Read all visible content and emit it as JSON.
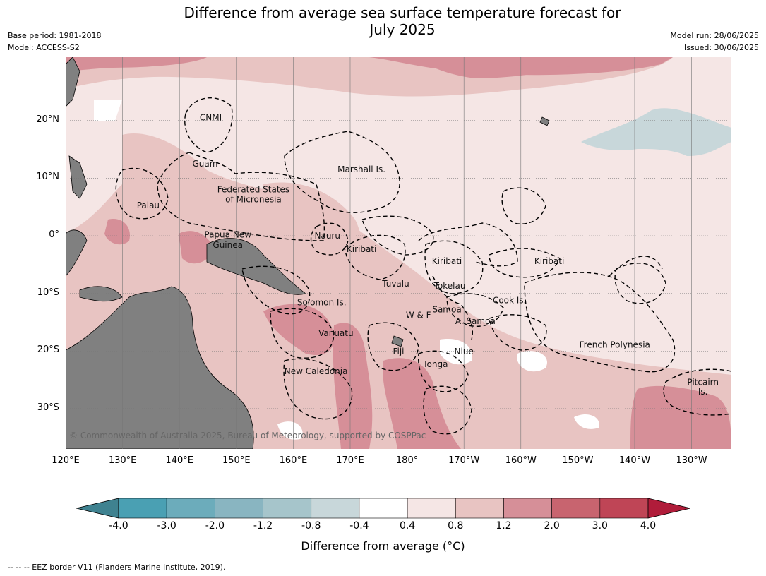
{
  "title_line1": "Difference from average sea surface temperature forecast for",
  "title_line2": "July 2025",
  "meta_left": [
    "Base period: 1981-2018",
    "Model: ACCESS-S2"
  ],
  "meta_right": [
    "Model run: 28/06/2025",
    "Issued: 30/06/2025"
  ],
  "copyright": "© Commonwealth of Australia 2025, Bureau of Meteorology, supported by COSPPac",
  "lat_labels": [
    {
      "label": "20°N",
      "lat": 20
    },
    {
      "label": "10°N",
      "lat": 10
    },
    {
      "label": "0°",
      "lat": 0
    },
    {
      "label": "10°S",
      "lat": -10
    },
    {
      "label": "20°S",
      "lat": -20
    },
    {
      "label": "30°S",
      "lat": -30
    }
  ],
  "lon_labels": [
    {
      "label": "120°E",
      "lon": 120
    },
    {
      "label": "130°E",
      "lon": 130
    },
    {
      "label": "140°E",
      "lon": 140
    },
    {
      "label": "150°E",
      "lon": 150
    },
    {
      "label": "160°E",
      "lon": 160
    },
    {
      "label": "170°E",
      "lon": 170
    },
    {
      "label": "180°",
      "lon": 180
    },
    {
      "label": "170°W",
      "lon": 190
    },
    {
      "label": "160°W",
      "lon": 200
    },
    {
      "label": "150°W",
      "lon": 210
    },
    {
      "label": "140°W",
      "lon": 220
    },
    {
      "label": "130°W",
      "lon": 230
    }
  ],
  "map_extent": {
    "lon": [
      120,
      237
    ],
    "lat": [
      -37,
      31
    ]
  },
  "places": [
    {
      "name": "CNMI",
      "lon": 145.5,
      "lat": 20.5
    },
    {
      "name": "Guam",
      "lon": 144.5,
      "lat": 12.5
    },
    {
      "name": "Marshall Is.",
      "lon": 172,
      "lat": 11.5
    },
    {
      "name": "Federated States",
      "lon": 153,
      "lat": 8
    },
    {
      "name": "of Micronesia",
      "lon": 153,
      "lat": 6.3
    },
    {
      "name": "Palau",
      "lon": 134.5,
      "lat": 5.3
    },
    {
      "name": "Papua New",
      "lon": 148.5,
      "lat": 0.2
    },
    {
      "name": "Guinea",
      "lon": 148.5,
      "lat": -1.6
    },
    {
      "name": "Nauru",
      "lon": 166,
      "lat": 0
    },
    {
      "name": "Kiribati",
      "lon": 172,
      "lat": -2.3
    },
    {
      "name": "Kiribati",
      "lon": 187,
      "lat": -4.4
    },
    {
      "name": "Kiribati",
      "lon": 205,
      "lat": -4.4
    },
    {
      "name": "Tuvalu",
      "lon": 178,
      "lat": -8.3
    },
    {
      "name": "Tokelau",
      "lon": 187.5,
      "lat": -8.7
    },
    {
      "name": "Cook Is.",
      "lon": 198,
      "lat": -11.2
    },
    {
      "name": "Solomon Is.",
      "lon": 165,
      "lat": -11.6
    },
    {
      "name": "Samoa",
      "lon": 187,
      "lat": -12.8
    },
    {
      "name": "W & F",
      "lon": 182,
      "lat": -13.8
    },
    {
      "name": "A. Samoa",
      "lon": 192,
      "lat": -14.8
    },
    {
      "name": "Vanuatu",
      "lon": 167.5,
      "lat": -16.9
    },
    {
      "name": "Fiji",
      "lon": 178.5,
      "lat": -20.1
    },
    {
      "name": "Niue",
      "lon": 190,
      "lat": -20.1
    },
    {
      "name": "French Polynesia",
      "lon": 216.5,
      "lat": -18.9
    },
    {
      "name": "Tonga",
      "lon": 185,
      "lat": -22.3
    },
    {
      "name": "New Caledonia",
      "lon": 164,
      "lat": -23.5
    },
    {
      "name": "Pitcairn",
      "lon": 232,
      "lat": -25.4
    },
    {
      "name": "Is.",
      "lon": 232,
      "lat": -27.1
    }
  ],
  "colorbar": {
    "bounds": [
      "-4.0",
      "-3.0",
      "-2.0",
      "-1.2",
      "-0.8",
      "-0.4",
      "0.4",
      "0.8",
      "1.2",
      "2.0",
      "3.0",
      "4.0"
    ],
    "colors": [
      "#4aa0b3",
      "#6cacbb",
      "#89b5c1",
      "#a6c5cb",
      "#c8d7da",
      "#ffffff",
      "#f5e6e5",
      "#e8c4c2",
      "#d68f98",
      "#c8646f",
      "#bf4556"
    ],
    "under_color": "#3f8290",
    "over_color": "#b01c3a",
    "label": "Difference from average ($^\\circ$C)",
    "label_rendered": "Difference from average (°C)"
  },
  "footnote": "--  --  -- EEZ border V11 (Flanders Marine Institute, 2019).",
  "colors": {
    "land": "#808080",
    "gridline": "#777777",
    "eez": "#000000"
  }
}
